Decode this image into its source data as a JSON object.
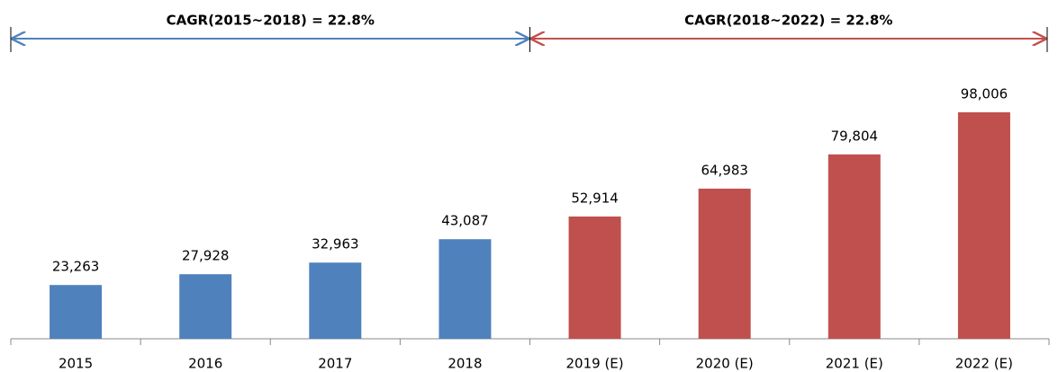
{
  "chart_data": {
    "type": "bar",
    "categories": [
      "2015",
      "2016",
      "2017",
      "2018",
      "2019 (E)",
      "2020 (E)",
      "2021 (E)",
      "2022 (E)"
    ],
    "values": [
      23263,
      27928,
      32963,
      43087,
      52914,
      64983,
      79804,
      98006
    ],
    "value_labels": [
      "23,263",
      "27,928",
      "32,963",
      "43,087",
      "52,914",
      "64,983",
      "79,804",
      "98,006"
    ],
    "colors": [
      "#4f81bd",
      "#4f81bd",
      "#4f81bd",
      "#4f81bd",
      "#c0504d",
      "#c0504d",
      "#c0504d",
      "#c0504d"
    ],
    "annotations": [
      {
        "text": "CAGR(2015~2018)  =  22.8%",
        "color": "#4f81bd"
      },
      {
        "text": "CAGR(2018~2022)  =  22.8%",
        "color": "#c0504d"
      }
    ]
  }
}
